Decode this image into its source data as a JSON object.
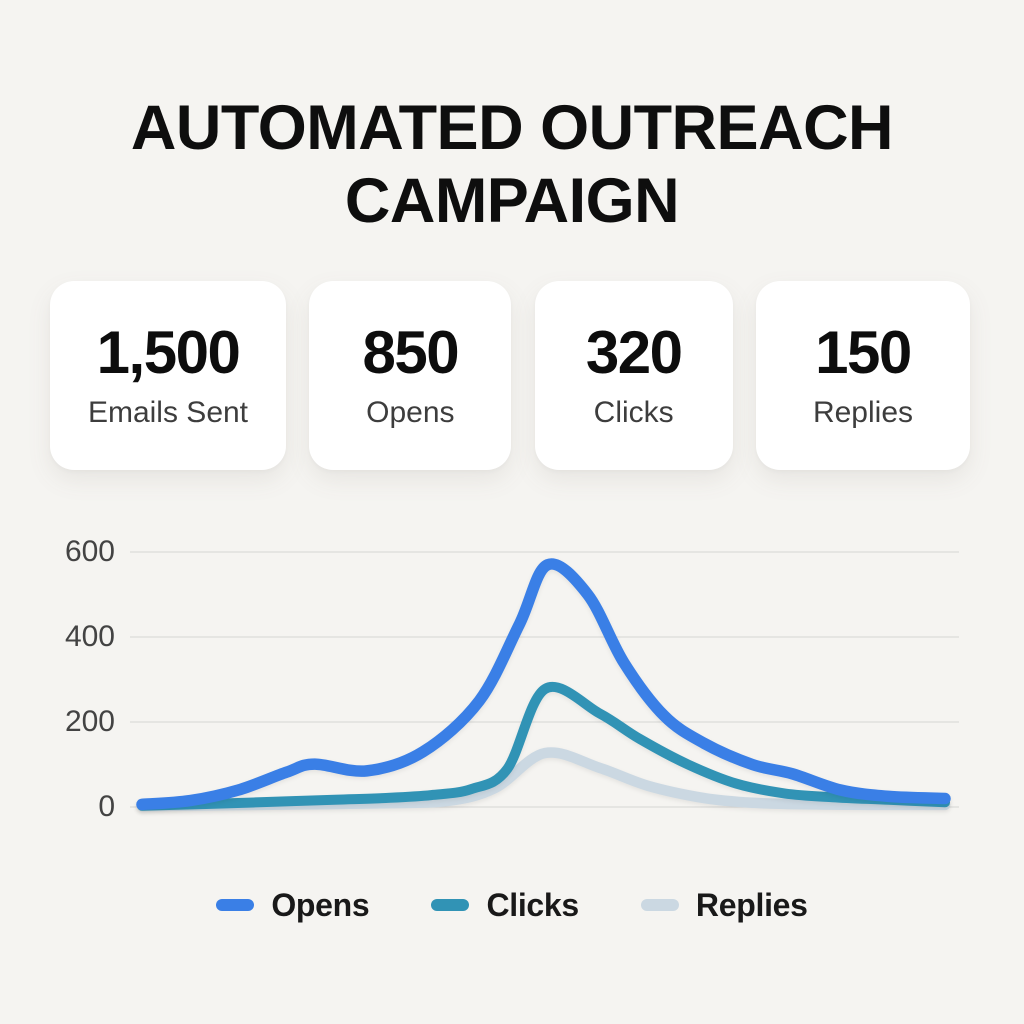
{
  "title": "AUTOMATED OUTREACH CAMPAIGN",
  "stats": [
    {
      "value": "1,500",
      "label": "Emails Sent"
    },
    {
      "value": "850",
      "label": "Opens"
    },
    {
      "value": "320",
      "label": "Clicks"
    },
    {
      "value": "150",
      "label": "Replies"
    }
  ],
  "colors": {
    "background": "#f5f4f1",
    "card": "#ffffff",
    "heading_text": "#0e0e0e",
    "label_text": "#3d3d3d",
    "axis_text": "#434343",
    "gridline": "#dcdcda",
    "opens_blue": "#3a7fe6",
    "clicks_teal": "#3193b5",
    "replies_gray": "#cbd8e2"
  },
  "chart_data": {
    "type": "line",
    "title": "",
    "xlabel": "",
    "ylabel": "",
    "ylim": [
      0,
      600
    ],
    "yticks": [
      600,
      400,
      200,
      0
    ],
    "grid": true,
    "legend_position": "bottom",
    "x_axis_labels": [],
    "series": [
      {
        "name": "Opens",
        "color": "#3a7fe6",
        "stroke_width": 11.5,
        "points": [
          [
            0.0,
            6
          ],
          [
            0.06,
            15
          ],
          [
            0.12,
            40
          ],
          [
            0.18,
            82
          ],
          [
            0.215,
            101
          ],
          [
            0.28,
            85
          ],
          [
            0.35,
            130
          ],
          [
            0.42,
            250
          ],
          [
            0.47,
            430
          ],
          [
            0.505,
            570
          ],
          [
            0.555,
            500
          ],
          [
            0.6,
            340
          ],
          [
            0.65,
            215
          ],
          [
            0.7,
            150
          ],
          [
            0.76,
            100
          ],
          [
            0.81,
            78
          ],
          [
            0.87,
            40
          ],
          [
            0.93,
            25
          ],
          [
            1.0,
            20
          ]
        ]
      },
      {
        "name": "Clicks",
        "color": "#3193b5",
        "stroke_width": 10,
        "points": [
          [
            0.0,
            3
          ],
          [
            0.08,
            7
          ],
          [
            0.16,
            12
          ],
          [
            0.24,
            17
          ],
          [
            0.3,
            21
          ],
          [
            0.36,
            28
          ],
          [
            0.41,
            42
          ],
          [
            0.455,
            90
          ],
          [
            0.502,
            278
          ],
          [
            0.57,
            220
          ],
          [
            0.62,
            160
          ],
          [
            0.68,
            100
          ],
          [
            0.74,
            55
          ],
          [
            0.8,
            32
          ],
          [
            0.86,
            23
          ],
          [
            0.93,
            17
          ],
          [
            1.0,
            11
          ]
        ]
      },
      {
        "name": "Replies",
        "color": "#cbd8e2",
        "stroke_width": 10.5,
        "points": [
          [
            0.0,
            2
          ],
          [
            0.1,
            4
          ],
          [
            0.2,
            6
          ],
          [
            0.3,
            9
          ],
          [
            0.38,
            14
          ],
          [
            0.44,
            45
          ],
          [
            0.502,
            127
          ],
          [
            0.57,
            92
          ],
          [
            0.63,
            50
          ],
          [
            0.7,
            21
          ],
          [
            0.76,
            10
          ],
          [
            0.84,
            6
          ],
          [
            0.92,
            5
          ],
          [
            1.0,
            5
          ]
        ]
      }
    ]
  }
}
